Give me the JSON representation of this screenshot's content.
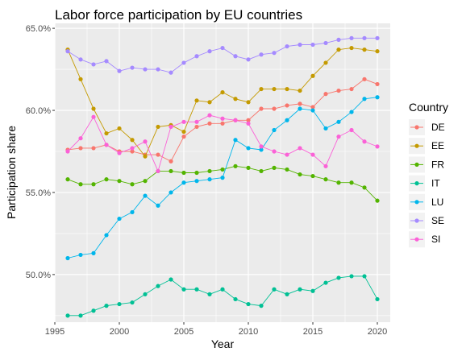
{
  "chart_data": {
    "type": "line",
    "title": "Labor force participation by EU countries",
    "xlabel": "Year",
    "ylabel": "Participation share",
    "xlim": [
      1995,
      2021
    ],
    "ylim": [
      47.1,
      65.3
    ],
    "x_ticks": [
      1995,
      2000,
      2005,
      2010,
      2015,
      2020
    ],
    "x_tick_labels": [
      "1995",
      "2000",
      "2005",
      "2010",
      "2015",
      "2020"
    ],
    "y_ticks": [
      50,
      55,
      60,
      65
    ],
    "y_tick_labels": [
      "50.0%",
      "55.0%",
      "60.0%",
      "65.0%"
    ],
    "grid": true,
    "legend": {
      "title": "Country",
      "position": "right"
    },
    "x": [
      1996,
      1997,
      1998,
      1999,
      2000,
      2001,
      2002,
      2003,
      2004,
      2005,
      2006,
      2007,
      2008,
      2009,
      2010,
      2011,
      2012,
      2013,
      2014,
      2015,
      2016,
      2017,
      2018,
      2019,
      2020
    ],
    "series": [
      {
        "name": "DE",
        "color": "#F8766D",
        "values": [
          57.6,
          57.7,
          57.7,
          57.9,
          57.5,
          57.5,
          57.3,
          57.3,
          56.9,
          58.4,
          59.0,
          59.2,
          59.2,
          59.4,
          59.4,
          60.1,
          60.1,
          60.3,
          60.4,
          60.2,
          61.0,
          61.2,
          61.3,
          61.9,
          61.6
        ]
      },
      {
        "name": "EE",
        "color": "#C49A00",
        "values": [
          63.7,
          61.9,
          60.1,
          58.6,
          58.9,
          58.2,
          57.2,
          59.0,
          59.1,
          58.7,
          60.6,
          60.5,
          61.1,
          60.7,
          60.5,
          61.3,
          61.3,
          61.3,
          61.2,
          62.1,
          62.9,
          63.7,
          63.8,
          63.7,
          63.6
        ]
      },
      {
        "name": "FR",
        "color": "#53B400",
        "values": [
          55.8,
          55.5,
          55.5,
          55.8,
          55.7,
          55.5,
          55.7,
          56.3,
          56.3,
          56.2,
          56.2,
          56.3,
          56.4,
          56.6,
          56.5,
          56.3,
          56.5,
          56.4,
          56.1,
          56.0,
          55.8,
          55.6,
          55.6,
          55.3,
          54.5
        ]
      },
      {
        "name": "IT",
        "color": "#00C094",
        "values": [
          47.5,
          47.5,
          47.8,
          48.1,
          48.2,
          48.3,
          48.8,
          49.3,
          49.7,
          49.1,
          49.1,
          48.8,
          49.1,
          48.5,
          48.2,
          48.1,
          49.1,
          48.8,
          49.1,
          49.0,
          49.5,
          49.8,
          49.9,
          49.9,
          48.5
        ]
      },
      {
        "name": "LU",
        "color": "#00B6EB",
        "values": [
          51.0,
          51.2,
          51.3,
          52.4,
          53.4,
          53.8,
          54.8,
          54.2,
          55.0,
          55.6,
          55.7,
          55.8,
          55.9,
          58.2,
          57.7,
          57.6,
          58.8,
          59.4,
          60.1,
          60.0,
          58.9,
          59.3,
          59.9,
          60.7,
          60.8
        ]
      },
      {
        "name": "SE",
        "color": "#A58AFF",
        "values": [
          63.6,
          63.1,
          62.8,
          63.0,
          62.4,
          62.6,
          62.5,
          62.5,
          62.3,
          62.9,
          63.3,
          63.6,
          63.8,
          63.3,
          63.1,
          63.4,
          63.5,
          63.9,
          64.0,
          64.0,
          64.1,
          64.3,
          64.4,
          64.4,
          64.4
        ]
      },
      {
        "name": "SI",
        "color": "#FB61D7",
        "values": [
          57.5,
          58.3,
          59.6,
          57.9,
          57.4,
          57.7,
          58.1,
          56.3,
          59.0,
          59.3,
          59.3,
          59.7,
          59.5,
          59.4,
          59.2,
          57.8,
          57.5,
          57.3,
          57.7,
          57.3,
          56.6,
          58.4,
          58.8,
          58.1,
          57.8
        ]
      }
    ]
  }
}
